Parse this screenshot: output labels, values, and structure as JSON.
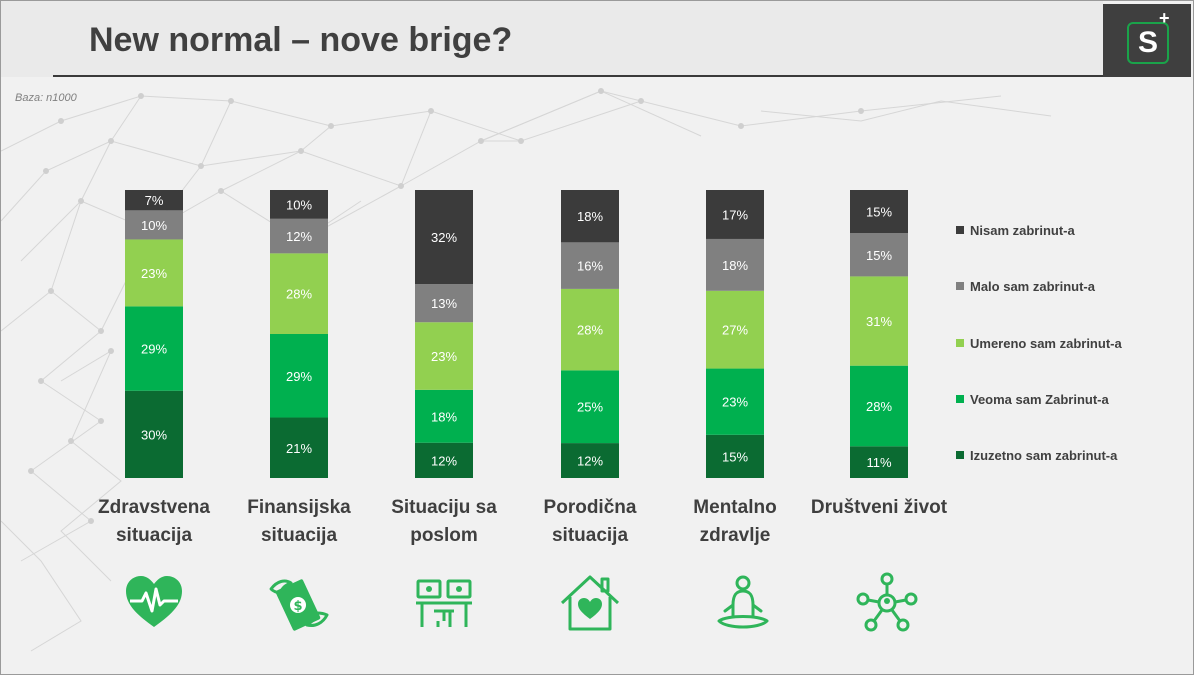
{
  "title": "New normal – nove brige?",
  "base_note": "Baza: n1000",
  "logo": {
    "letter": "S",
    "plus": "+"
  },
  "colors": {
    "izuzetno": "#0b6b32",
    "veoma": "#00b04f",
    "umereno": "#92d050",
    "malo": "#808080",
    "nisam": "#3b3b3b",
    "icon": "#2fb55a"
  },
  "legend": [
    {
      "label": "Nisam zabrinut-a",
      "color": "#3b3b3b"
    },
    {
      "label": "Malo sam zabrinut-a",
      "color": "#808080"
    },
    {
      "label": "Umereno sam zabrinut-a",
      "color": "#92d050"
    },
    {
      "label": "Veoma sam Zabrinut-a",
      "color": "#00b04f"
    },
    {
      "label": "Izuzetno sam zabrinut-a",
      "color": "#0b6b32"
    }
  ],
  "categories": [
    {
      "label": "Zdravstvena situacija",
      "icon": "heart-pulse-icon"
    },
    {
      "label": "Finansijska situacija",
      "icon": "flying-money-icon"
    },
    {
      "label": "Situaciju sa poslom",
      "icon": "workstation-icon"
    },
    {
      "label": "Porodična situacija",
      "icon": "house-heart-icon"
    },
    {
      "label": "Mentalno zdravlje",
      "icon": "meditation-icon"
    },
    {
      "label": "Društveni život",
      "icon": "social-network-icon"
    }
  ],
  "chart_data": {
    "type": "bar",
    "stacked": true,
    "unit": "%",
    "categories": [
      "Zdravstvena situacija",
      "Finansijska situacija",
      "Situaciju sa poslom",
      "Porodična situacija",
      "Mentalno zdravlje",
      "Društveni život"
    ],
    "series": [
      {
        "name": "Izuzetno sam zabrinut-a",
        "color": "#0b6b32",
        "values": [
          30,
          21,
          12,
          12,
          15,
          11
        ]
      },
      {
        "name": "Veoma sam Zabrinut-a",
        "color": "#00b04f",
        "values": [
          29,
          29,
          18,
          25,
          23,
          28
        ]
      },
      {
        "name": "Umereno sam zabrinut-a",
        "color": "#92d050",
        "values": [
          23,
          28,
          23,
          28,
          27,
          31
        ]
      },
      {
        "name": "Malo sam zabrinut-a",
        "color": "#808080",
        "values": [
          10,
          12,
          13,
          16,
          18,
          15
        ]
      },
      {
        "name": "Nisam zabrinut-a",
        "color": "#3b3b3b",
        "values": [
          7,
          10,
          32,
          18,
          17,
          15
        ]
      }
    ],
    "legend_position": "right",
    "grid": false,
    "data_labels": true
  }
}
